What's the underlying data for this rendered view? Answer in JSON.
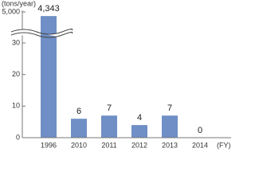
{
  "chart_data": {
    "type": "bar",
    "y_unit_label": "(tons/year)",
    "x_unit_label": "(FY)",
    "categories": [
      "1996",
      "2010",
      "2011",
      "2012",
      "2013",
      "2014"
    ],
    "values": [
      4343,
      6,
      7,
      4,
      7,
      0
    ],
    "value_labels": [
      "4,343",
      "6",
      "7",
      "4",
      "7",
      "0"
    ],
    "color": "#6f8fc6",
    "ylim": [
      0,
      5000
    ],
    "ybreak": [
      30,
      5000
    ],
    "yticks": [
      0,
      10,
      20,
      30,
      {
        "value": 5000,
        "label": "5,000"
      }
    ]
  }
}
